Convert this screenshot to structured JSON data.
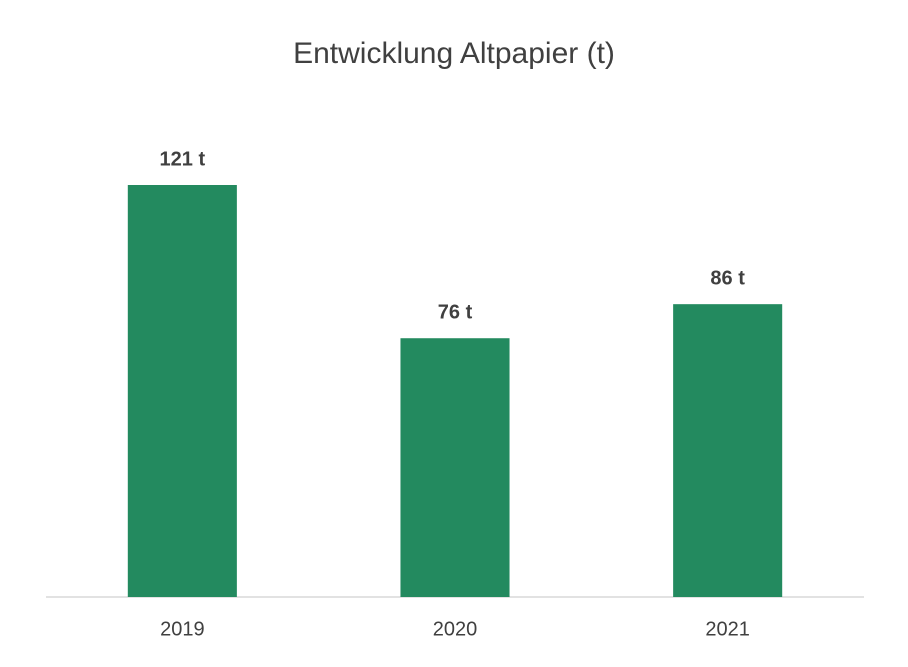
{
  "chart_data": {
    "type": "bar",
    "title": "Entwicklung Altpapier (t)",
    "categories": [
      "2019",
      "2020",
      "2021"
    ],
    "values": [
      121,
      76,
      86
    ],
    "value_labels": [
      "121 t",
      "76 t",
      "86 t"
    ],
    "color": "#238a5f"
  }
}
